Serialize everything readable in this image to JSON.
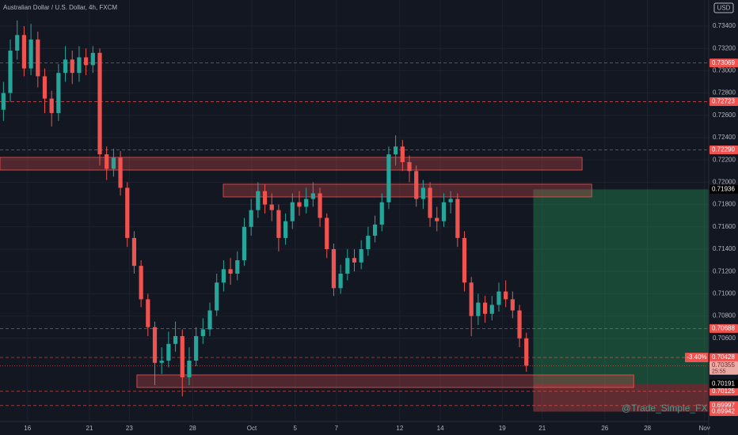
{
  "chart_data": {
    "type": "candlestick",
    "title": "Australian Dollar / U.S. Dollar, 4h, FXCM",
    "currency": "USD",
    "watermark": "@Trade_Simple_FX",
    "up_color": "#26a69a",
    "down_color": "#ef5350",
    "xlim": [
      -0.5,
      102.5
    ],
    "ylim": [
      0.69733,
      0.73634
    ],
    "grid": true,
    "open": [
      0.7265,
      0.728,
      0.7318,
      0.7332,
      0.7302,
      0.7328,
      0.7295,
      0.7275,
      0.7262,
      0.7298,
      0.731,
      0.7298,
      0.7312,
      0.7305,
      0.7316,
      0.7225,
      0.7212,
      0.7222,
      0.7195,
      0.715,
      0.7125,
      0.7095,
      0.707,
      0.7038,
      0.704,
      0.7055,
      0.7062,
      0.7025,
      0.704,
      0.7062,
      0.7068,
      0.7085,
      0.711,
      0.7122,
      0.7118,
      0.713,
      0.716,
      0.7175,
      0.7192,
      0.718,
      0.7175,
      0.715,
      0.7165,
      0.7182,
      0.7178,
      0.7185,
      0.719,
      0.7168,
      0.714,
      0.7105,
      0.7118,
      0.7132,
      0.7128,
      0.714,
      0.7152,
      0.7162,
      0.7182,
      0.7225,
      0.7232,
      0.7218,
      0.721,
      0.7185,
      0.7195,
      0.7168,
      0.7165,
      0.7182,
      0.7185,
      0.715,
      0.711,
      0.708,
      0.7092,
      0.7082,
      0.709,
      0.7102,
      0.7095,
      0.7085,
      0.706
    ],
    "high": [
      0.729,
      0.7328,
      0.7345,
      0.734,
      0.7342,
      0.7335,
      0.7302,
      0.7282,
      0.7306,
      0.7322,
      0.7318,
      0.7322,
      0.732,
      0.7322,
      0.732,
      0.7232,
      0.723,
      0.7228,
      0.72,
      0.7156,
      0.713,
      0.71,
      0.7075,
      0.7052,
      0.7066,
      0.7075,
      0.7068,
      0.7052,
      0.707,
      0.7078,
      0.7092,
      0.7118,
      0.713,
      0.7132,
      0.7138,
      0.7168,
      0.7185,
      0.72,
      0.7198,
      0.719,
      0.718,
      0.7172,
      0.719,
      0.7192,
      0.7195,
      0.72,
      0.7195,
      0.7172,
      0.7145,
      0.7126,
      0.714,
      0.714,
      0.7148,
      0.716,
      0.717,
      0.719,
      0.7232,
      0.7242,
      0.7238,
      0.7224,
      0.7215,
      0.7202,
      0.72,
      0.7178,
      0.719,
      0.7192,
      0.719,
      0.7156,
      0.7115,
      0.71,
      0.7098,
      0.7098,
      0.711,
      0.7112,
      0.7102,
      0.709,
      0.7065
    ],
    "low": [
      0.7255,
      0.7272,
      0.731,
      0.7295,
      0.7296,
      0.7285,
      0.7262,
      0.725,
      0.7255,
      0.729,
      0.7288,
      0.729,
      0.7296,
      0.7298,
      0.7215,
      0.7202,
      0.7205,
      0.7188,
      0.7142,
      0.7118,
      0.7088,
      0.7062,
      0.7018,
      0.7028,
      0.7034,
      0.7048,
      0.7008,
      0.7018,
      0.7035,
      0.7055,
      0.7062,
      0.708,
      0.7102,
      0.7108,
      0.7112,
      0.7125,
      0.7152,
      0.7168,
      0.7172,
      0.7165,
      0.7138,
      0.7144,
      0.7158,
      0.717,
      0.7172,
      0.7178,
      0.716,
      0.7132,
      0.7098,
      0.71,
      0.7112,
      0.712,
      0.7122,
      0.7134,
      0.7146,
      0.7156,
      0.7176,
      0.7215,
      0.721,
      0.72,
      0.7178,
      0.7176,
      0.716,
      0.7156,
      0.716,
      0.7172,
      0.7142,
      0.7102,
      0.7062,
      0.7072,
      0.7074,
      0.7076,
      0.7084,
      0.7088,
      0.7078,
      0.7052,
      0.703
    ],
    "close": [
      0.728,
      0.7318,
      0.7332,
      0.7302,
      0.7328,
      0.7295,
      0.7275,
      0.7262,
      0.7298,
      0.731,
      0.7298,
      0.7312,
      0.7305,
      0.7316,
      0.7225,
      0.7212,
      0.7222,
      0.7195,
      0.715,
      0.7125,
      0.7095,
      0.707,
      0.7038,
      0.704,
      0.7055,
      0.7062,
      0.7025,
      0.704,
      0.7062,
      0.7068,
      0.7085,
      0.711,
      0.7122,
      0.7118,
      0.713,
      0.716,
      0.7175,
      0.7192,
      0.718,
      0.7175,
      0.715,
      0.7165,
      0.7182,
      0.7178,
      0.7185,
      0.719,
      0.7168,
      0.714,
      0.7105,
      0.7118,
      0.7132,
      0.7128,
      0.714,
      0.7152,
      0.7162,
      0.7182,
      0.7225,
      0.7232,
      0.7218,
      0.721,
      0.7185,
      0.7195,
      0.7168,
      0.7165,
      0.7182,
      0.7185,
      0.715,
      0.711,
      0.708,
      0.7092,
      0.7082,
      0.709,
      0.7102,
      0.7095,
      0.7085,
      0.706,
      0.70355
    ],
    "yticks": [
      {
        "value": 0.734,
        "label": "0.73400"
      },
      {
        "value": 0.732,
        "label": "0.73200"
      },
      {
        "value": 0.73,
        "label": "0.73000"
      },
      {
        "value": 0.728,
        "label": "0.72800"
      },
      {
        "value": 0.726,
        "label": "0.72600"
      },
      {
        "value": 0.724,
        "label": "0.72400"
      },
      {
        "value": 0.722,
        "label": "0.72200"
      },
      {
        "value": 0.72,
        "label": "0.72000"
      },
      {
        "value": 0.718,
        "label": "0.71800"
      },
      {
        "value": 0.716,
        "label": "0.71600"
      },
      {
        "value": 0.714,
        "label": "0.71400"
      },
      {
        "value": 0.712,
        "label": "0.71200"
      },
      {
        "value": 0.71,
        "label": "0.71000"
      },
      {
        "value": 0.708,
        "label": "0.70800"
      },
      {
        "value": 0.706,
        "label": "0.70600"
      }
    ],
    "xticks": [
      {
        "value": 3.5,
        "label": "16"
      },
      {
        "value": 12.5,
        "label": "21"
      },
      {
        "value": 18.3,
        "label": "23"
      },
      {
        "value": 27.5,
        "label": "28"
      },
      {
        "value": 36.1,
        "label": "Oct"
      },
      {
        "value": 42.4,
        "label": "5"
      },
      {
        "value": 48.4,
        "label": "7"
      },
      {
        "value": 57.6,
        "label": "12"
      },
      {
        "value": 63.5,
        "label": "14"
      },
      {
        "value": 72.5,
        "label": "19"
      },
      {
        "value": 78.3,
        "label": "21"
      },
      {
        "value": 87.4,
        "label": "26"
      },
      {
        "value": 93.6,
        "label": "28"
      },
      {
        "value": 101.9,
        "label": "Nov"
      }
    ],
    "hlines": [
      0.73069,
      0.72723,
      {
        "value": 0.7229,
        "label": "0.72290"
      },
      0.70688,
      0.70428,
      0.70125,
      0.69997
    ],
    "zones": [
      {
        "top": 0.72223,
        "bottom": 0.72109,
        "start": -0.5,
        "end": 84.1
      },
      {
        "top": 0.71982,
        "bottom": 0.71868,
        "start": 31.95,
        "end": 85.5
      },
      {
        "top": 0.70272,
        "bottom": 0.70159,
        "start": 19.4,
        "end": 91.6
      }
    ],
    "position": {
      "entry": 0.70191,
      "target": 0.71936,
      "stop": 0.69942,
      "start": 77,
      "end": 102.5
    },
    "last_price": 0.70355,
    "change_label": "-3.40%",
    "countdown": "25:55"
  }
}
